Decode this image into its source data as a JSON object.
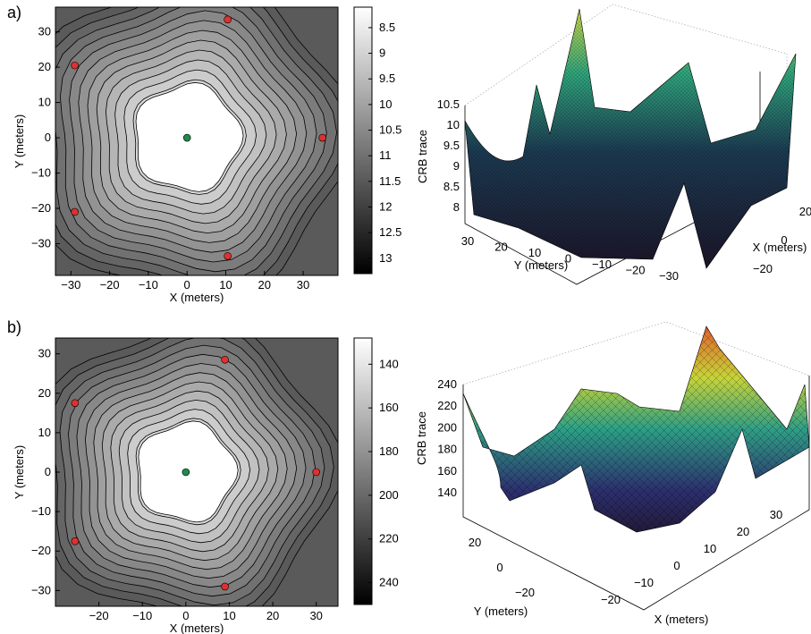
{
  "panels": [
    {
      "label": "a)"
    },
    {
      "label": "b)"
    }
  ],
  "colors": {
    "anchor": "#e0302f",
    "target": "#1f8a4c",
    "contour_line": "#000000",
    "surface_low": "#2a1f3f",
    "surface_high": "#d9e632"
  },
  "chart_data": [
    {
      "id": "a-contour",
      "type": "heatmap",
      "subtype": "contour",
      "xlabel": "X (meters)",
      "ylabel": "Y (meters)",
      "xlim": [
        -34,
        39
      ],
      "ylim": [
        -39,
        37
      ],
      "xticks": [
        -30,
        -20,
        -10,
        0,
        10,
        20,
        30
      ],
      "yticks": [
        -30,
        -20,
        -10,
        0,
        10,
        20,
        30
      ],
      "colorbar": {
        "ticks": [
          8.5,
          9,
          9.5,
          10,
          10.5,
          11,
          11.5,
          12,
          12.5,
          13
        ],
        "lim": [
          8.1,
          13.3
        ],
        "scale": "gray, white=low, black=high"
      },
      "anchors": [
        [
          10.5,
          33.5
        ],
        [
          -29,
          20.5
        ],
        [
          35,
          0
        ],
        [
          -29,
          -21
        ],
        [
          10.5,
          -33.5
        ]
      ],
      "target": [
        0,
        0
      ]
    },
    {
      "id": "a-surface",
      "type": "area",
      "subtype": "3d-surface",
      "zlabel": "CRB trace",
      "xlabel": "X (meters)",
      "ylabel": "Y (meters)",
      "zticks": [
        8,
        8.5,
        9,
        9.5,
        10,
        10.5
      ],
      "xticks": [
        -20,
        0,
        20
      ],
      "yticks": [
        30,
        20,
        10,
        0,
        -10,
        -20,
        -30
      ]
    },
    {
      "id": "b-contour",
      "type": "heatmap",
      "subtype": "contour",
      "xlabel": "X (meters)",
      "ylabel": "Y (meters)",
      "xlim": [
        -30,
        35
      ],
      "ylim": [
        -34,
        34
      ],
      "xticks": [
        -20,
        -10,
        0,
        10,
        20,
        30
      ],
      "yticks": [
        -30,
        -20,
        -10,
        0,
        10,
        20,
        30
      ],
      "colorbar": {
        "ticks": [
          140,
          160,
          180,
          200,
          220,
          240
        ],
        "lim": [
          128,
          250
        ],
        "scale": "gray, white=low, black=high"
      },
      "anchors": [
        [
          9,
          28.5
        ],
        [
          -25.5,
          17.5
        ],
        [
          30,
          0
        ],
        [
          -25.5,
          -17.5
        ],
        [
          9,
          -29
        ]
      ],
      "target": [
        0,
        0
      ]
    },
    {
      "id": "b-surface",
      "type": "area",
      "subtype": "3d-surface",
      "zlabel": "CRB trace",
      "xlabel": "X (meters)",
      "ylabel": "Y (meters)",
      "zticks": [
        140,
        160,
        180,
        200,
        220,
        240
      ],
      "xticks": [
        -20,
        -10,
        0,
        10,
        20,
        30
      ],
      "yticks": [
        20,
        0,
        -20
      ]
    }
  ]
}
